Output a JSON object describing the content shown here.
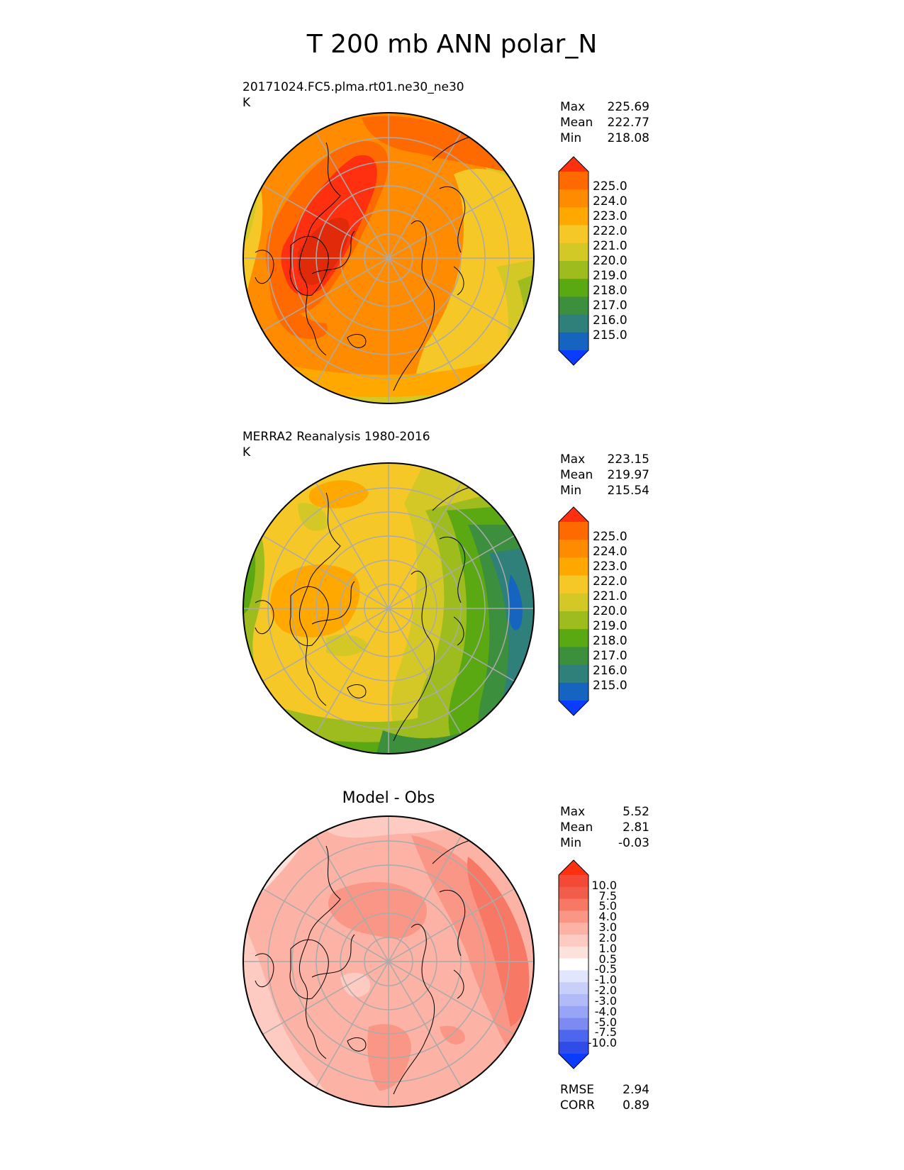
{
  "title": "T 200 mb ANN polar_N",
  "panels": [
    {
      "title_line1": "20171024.FC5.plma.rt01.ne30_ne30",
      "title_line2": "K",
      "stats": [
        {
          "label": "Max",
          "value": "225.69"
        },
        {
          "label": "Mean",
          "value": "222.77"
        },
        {
          "label": "Min",
          "value": "218.08"
        }
      ],
      "colorbar_labels": [
        "225.0",
        "224.0",
        "223.0",
        "222.0",
        "221.0",
        "220.0",
        "219.0",
        "218.0",
        "217.0",
        "216.0",
        "215.0"
      ]
    },
    {
      "title_line1": "MERRA2 Reanalysis 1980-2016",
      "title_line2": "K",
      "stats": [
        {
          "label": "Max",
          "value": "223.15"
        },
        {
          "label": "Mean",
          "value": "219.97"
        },
        {
          "label": "Min",
          "value": "215.54"
        }
      ],
      "colorbar_labels": [
        "225.0",
        "224.0",
        "223.0",
        "222.0",
        "221.0",
        "220.0",
        "219.0",
        "218.0",
        "217.0",
        "216.0",
        "215.0"
      ]
    },
    {
      "title_center": "Model - Obs",
      "stats": [
        {
          "label": "Max",
          "value": "5.52"
        },
        {
          "label": "Mean",
          "value": "2.81"
        },
        {
          "label": "Min",
          "value": "-0.03"
        }
      ],
      "colorbar_labels": [
        "10.0",
        "7.5",
        "5.0",
        "4.0",
        "3.0",
        "2.0",
        "1.0",
        "0.5",
        "-0.5",
        "-1.0",
        "-2.0",
        "-3.0",
        "-4.0",
        "-5.0",
        "-7.5",
        "-10.0"
      ],
      "metrics": [
        {
          "label": "RMSE",
          "value": "2.94"
        },
        {
          "label": "CORR",
          "value": "0.89"
        }
      ]
    }
  ],
  "colors": {
    "temp_scale": [
      "#ff3010",
      "#ff6a00",
      "#ff8c00",
      "#ffa800",
      "#f5c828",
      "#d4c827",
      "#9ebc1e",
      "#5aa812",
      "#3c8f3c",
      "#2f7f7a",
      "#1565c0",
      "#0a3cff"
    ],
    "diff_scale": [
      "#ff3010",
      "#f24a36",
      "#f25c4a",
      "#f77864",
      "#fa9685",
      "#fcb2a4",
      "#fdcbc2",
      "#fde2dc",
      "#ffffff",
      "#e1e6fc",
      "#c8d0fa",
      "#b1bbf8",
      "#98a4f6",
      "#7c8af2",
      "#4d66ee",
      "#2f4be8",
      "#0a3cff"
    ]
  }
}
